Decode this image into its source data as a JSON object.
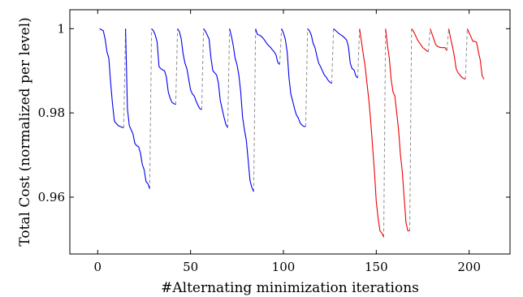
{
  "chart_data": {
    "type": "line",
    "title": "",
    "xlabel": "#Alternating minimization iterations",
    "ylabel": "Total Cost (normalized per level)",
    "xlim": [
      -15,
      222
    ],
    "ylim": [
      0.9465,
      1.0045
    ],
    "x_ticks": [
      0,
      50,
      100,
      150,
      200
    ],
    "y_ticks": [
      0.96,
      0.98,
      1
    ],
    "y_tick_labels": [
      "0.96",
      "0.98",
      "1"
    ],
    "grid": false,
    "legend": "none",
    "colors": {
      "blue_segments": "#0000ee",
      "red_segments": "#ee0000",
      "reset_lines": "#8c8c8c",
      "axes": "#000000"
    },
    "series": [
      {
        "color": "blue",
        "x": [
          1,
          3,
          4,
          5,
          6,
          7,
          8,
          9,
          10,
          11,
          12,
          13,
          14
        ],
        "y": [
          1.0,
          0.9995,
          0.9975,
          0.9945,
          0.993,
          0.987,
          0.982,
          0.978,
          0.9775,
          0.977,
          0.9768,
          0.9766,
          0.9765
        ]
      },
      {
        "color": "blue",
        "x": [
          15,
          16,
          17,
          18,
          19,
          20,
          21,
          22,
          23,
          24,
          25,
          26,
          27,
          28
        ],
        "y": [
          1.0,
          0.981,
          0.977,
          0.976,
          0.975,
          0.9728,
          0.9722,
          0.972,
          0.9705,
          0.9678,
          0.9665,
          0.9637,
          0.9632,
          0.962
        ]
      },
      {
        "color": "blue",
        "x": [
          29,
          30,
          31,
          32,
          33,
          34,
          35,
          36,
          37,
          38,
          39,
          40,
          41,
          42
        ],
        "y": [
          1.0,
          0.9995,
          0.9985,
          0.9968,
          0.991,
          0.9905,
          0.9902,
          0.99,
          0.9885,
          0.985,
          0.9835,
          0.9825,
          0.9822,
          0.982
        ]
      },
      {
        "color": "blue",
        "x": [
          43,
          44,
          45,
          46,
          47,
          48,
          49,
          50,
          51,
          52,
          53,
          54,
          55,
          56
        ],
        "y": [
          1.0,
          0.9993,
          0.9975,
          0.994,
          0.9918,
          0.9905,
          0.988,
          0.9855,
          0.9845,
          0.984,
          0.9828,
          0.9818,
          0.981,
          0.9808
        ]
      },
      {
        "color": "blue",
        "x": [
          57,
          58,
          59,
          60,
          61,
          62,
          63,
          64,
          65,
          66,
          67,
          68,
          69,
          70
        ],
        "y": [
          1.0,
          0.9994,
          0.9985,
          0.9975,
          0.993,
          0.99,
          0.9895,
          0.989,
          0.987,
          0.983,
          0.981,
          0.979,
          0.9773,
          0.9765
        ]
      },
      {
        "color": "blue",
        "x": [
          71,
          72,
          73,
          74,
          75,
          76,
          77,
          78,
          79,
          80,
          81,
          82,
          83,
          84
        ],
        "y": [
          1.0,
          0.9982,
          0.996,
          0.993,
          0.9915,
          0.989,
          0.985,
          0.979,
          0.976,
          0.9735,
          0.969,
          0.964,
          0.9623,
          0.9613
        ]
      },
      {
        "color": "blue",
        "x": [
          85,
          86,
          87,
          88,
          89,
          90,
          91,
          92,
          93,
          94,
          95,
          96,
          97,
          98
        ],
        "y": [
          1.0,
          0.9986,
          0.9985,
          0.9982,
          0.9978,
          0.9972,
          0.9965,
          0.996,
          0.9956,
          0.995,
          0.9945,
          0.9938,
          0.992,
          0.9915
        ]
      },
      {
        "color": "blue",
        "x": [
          99,
          100,
          101,
          102,
          103,
          104,
          105,
          106,
          107,
          108,
          109,
          110,
          111,
          112
        ],
        "y": [
          1.0,
          0.999,
          0.9975,
          0.9945,
          0.9883,
          0.9845,
          0.9828,
          0.981,
          0.9795,
          0.9788,
          0.9776,
          0.9771,
          0.9768,
          0.9768
        ]
      },
      {
        "color": "blue",
        "x": [
          113,
          114,
          115,
          116,
          117,
          118,
          119,
          120,
          121,
          122,
          123,
          124,
          125,
          126
        ],
        "y": [
          1.0,
          0.9995,
          0.9985,
          0.9965,
          0.9955,
          0.9935,
          0.9918,
          0.991,
          0.99,
          0.989,
          0.9885,
          0.9878,
          0.9873,
          0.987
        ]
      },
      {
        "color": "blue",
        "x": [
          127,
          128,
          129,
          130,
          131,
          132,
          133,
          134,
          135,
          136,
          137,
          138,
          139,
          140
        ],
        "y": [
          1.0,
          0.9996,
          0.9992,
          0.9988,
          0.9985,
          0.9982,
          0.9978,
          0.9973,
          0.9958,
          0.9918,
          0.9905,
          0.9902,
          0.9888,
          0.9883
        ]
      },
      {
        "color": "red",
        "x": [
          141,
          142,
          143,
          144,
          145,
          146,
          147,
          148,
          149,
          150,
          151,
          152,
          153,
          154
        ],
        "y": [
          1.0,
          0.997,
          0.994,
          0.991,
          0.987,
          0.983,
          0.978,
          0.972,
          0.966,
          0.959,
          0.955,
          0.952,
          0.9515,
          0.9505
        ]
      },
      {
        "color": "red",
        "x": [
          155,
          156,
          157,
          158,
          159,
          160,
          161,
          162,
          163,
          164,
          165,
          166,
          167,
          168
        ],
        "y": [
          1.0,
          0.996,
          0.993,
          0.988,
          0.985,
          0.984,
          0.98,
          0.976,
          0.97,
          0.966,
          0.96,
          0.954,
          0.952,
          0.952
        ]
      },
      {
        "color": "red",
        "x": [
          169,
          170,
          171,
          172,
          173,
          174,
          175,
          176,
          177,
          178
        ],
        "y": [
          1.0,
          0.9994,
          0.9985,
          0.9975,
          0.9968,
          0.9962,
          0.9955,
          0.9952,
          0.9948,
          0.9945
        ]
      },
      {
        "color": "red",
        "x": [
          179,
          180,
          181,
          182,
          183,
          184,
          185,
          186,
          187,
          188
        ],
        "y": [
          1.0,
          0.9988,
          0.9975,
          0.9962,
          0.9958,
          0.9956,
          0.9955,
          0.9955,
          0.9955,
          0.9948
        ]
      },
      {
        "color": "red",
        "x": [
          189,
          190,
          191,
          192,
          193,
          194,
          195,
          196,
          197,
          198
        ],
        "y": [
          1.0,
          0.9978,
          0.9958,
          0.9935,
          0.9905,
          0.9895,
          0.989,
          0.9885,
          0.9882,
          0.988
        ]
      },
      {
        "color": "red",
        "x": [
          199,
          200,
          201,
          202,
          203,
          204,
          205,
          206,
          207,
          208
        ],
        "y": [
          1.0,
          0.999,
          0.998,
          0.997,
          0.997,
          0.9968,
          0.9945,
          0.9925,
          0.9888,
          0.988
        ]
      }
    ]
  }
}
